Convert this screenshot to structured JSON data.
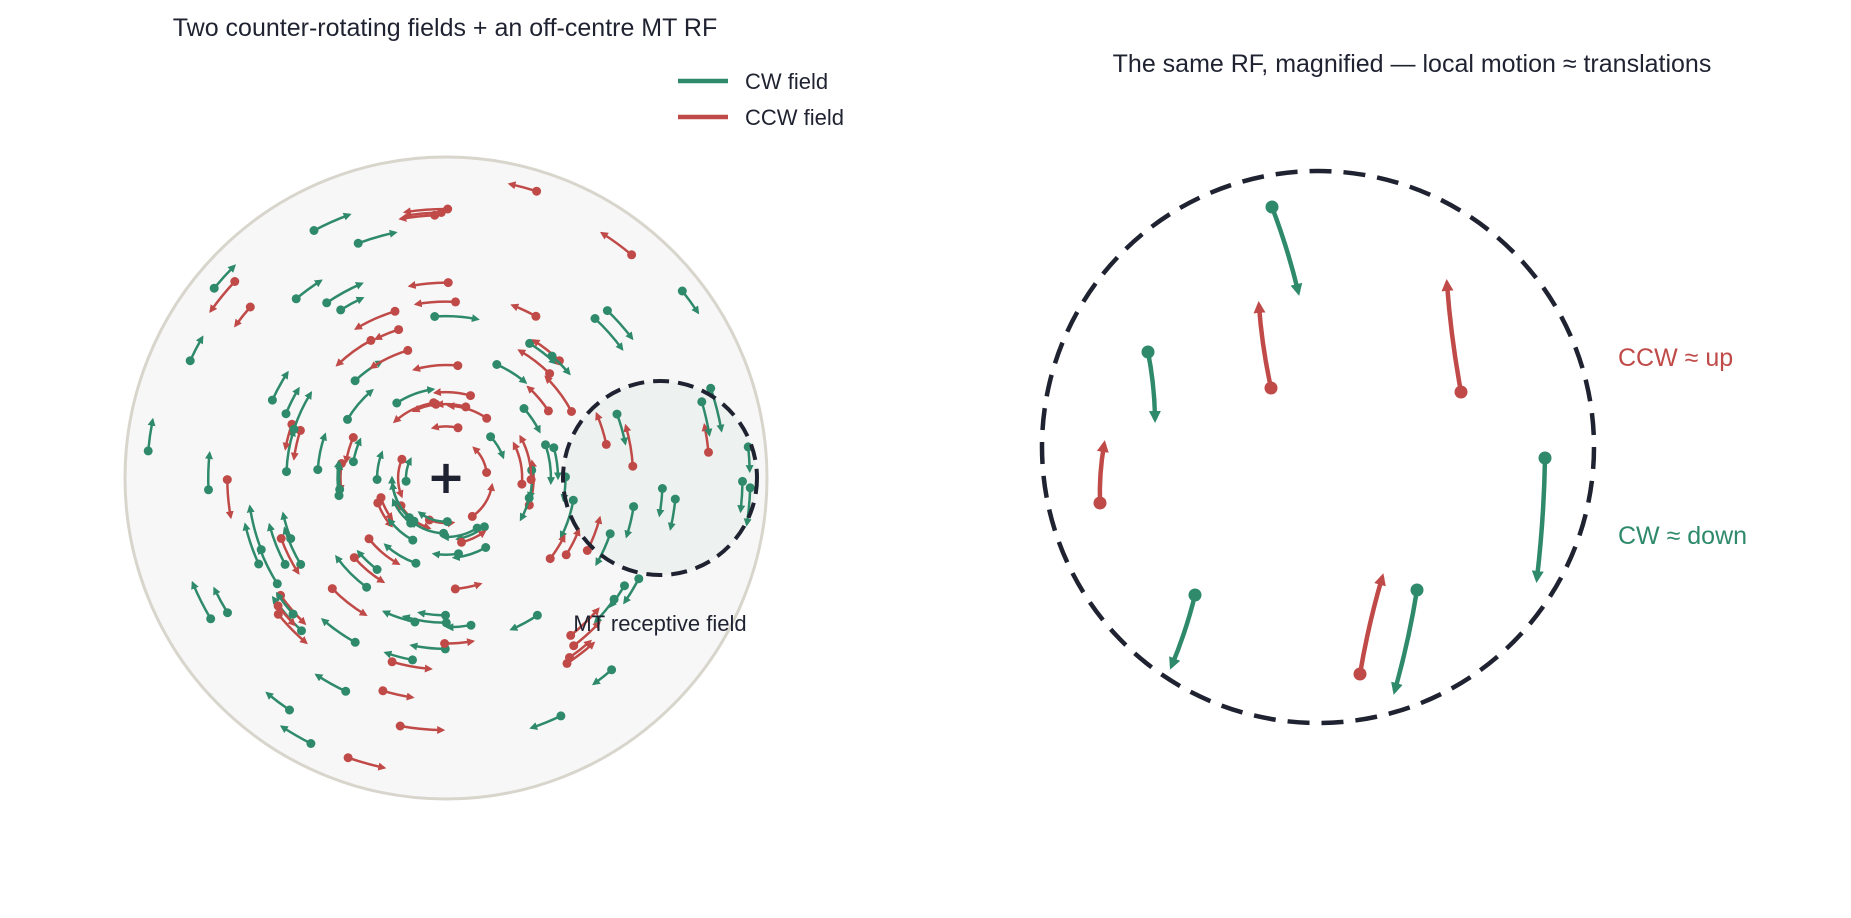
{
  "left_panel": {
    "title": "Two counter-rotating fields + an off-centre MT RF",
    "rf_label": "MT receptive field",
    "fixation_mark": "+"
  },
  "right_panel": {
    "title": "The same RF, magnified — local motion ≈ translations",
    "ccw_label": "CCW ≈ up",
    "cw_label": "CW ≈ down"
  },
  "legend": {
    "items": [
      {
        "label": "CW field",
        "color": "#2e8a6a"
      },
      {
        "label": "CCW field",
        "color": "#c04a48"
      }
    ]
  },
  "colors": {
    "cw": "#2e8a6a",
    "ccw": "#c04a48",
    "field_fill": "#f7f7f7",
    "field_stroke": "#d8d5cc",
    "rf_fill": "#edf1ef",
    "rf_stroke": "#1f2230",
    "text": "#1f2230"
  }
}
